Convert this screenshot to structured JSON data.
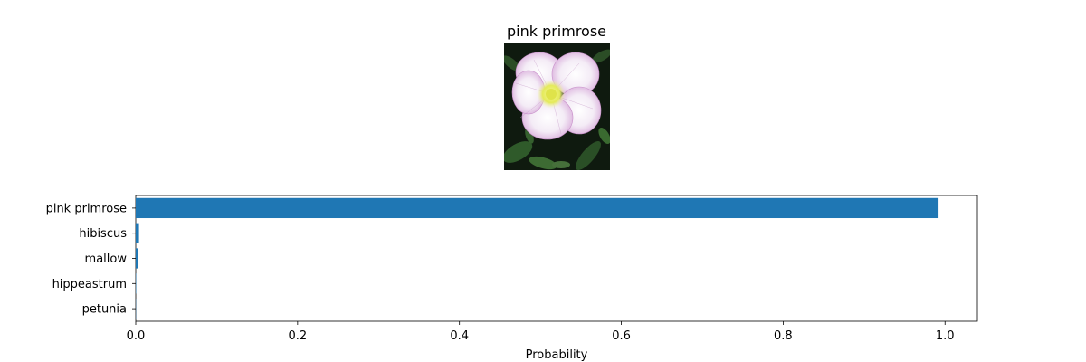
{
  "image_panel": {
    "title": "pink primrose"
  },
  "chart_data": {
    "type": "bar",
    "orientation": "horizontal",
    "categories": [
      "pink primrose",
      "hibiscus",
      "mallow",
      "hippeastrum",
      "petunia"
    ],
    "values": [
      0.992,
      0.004,
      0.003,
      0.0005,
      0.0003
    ],
    "xlabel": "Probability",
    "ylabel": "",
    "xlim": [
      0,
      1.04
    ],
    "xticks": [
      0,
      0.2,
      0.4,
      0.6,
      0.8,
      1.0
    ],
    "xtick_labels": [
      "0.0",
      "0.2",
      "0.4",
      "0.6",
      "0.8",
      "1.0"
    ],
    "grid": false,
    "bar_color": "#1f77b4"
  },
  "colors": {
    "bar": "#1f77b4",
    "axis": "#000000",
    "petal_light": "#f6eef8",
    "petal_pink": "#d9a8da",
    "flower_center": "#eef06a",
    "foliage_dark": "#0f1a0f",
    "foliage_green": "#2f5a2a"
  }
}
